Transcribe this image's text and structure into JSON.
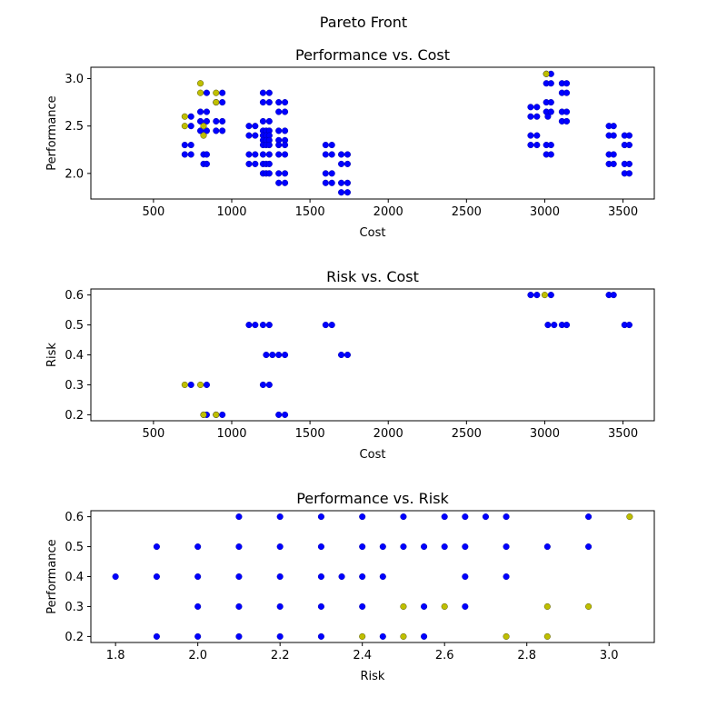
{
  "figure": {
    "suptitle": "Pareto Front"
  },
  "colors": {
    "dominated": "#0000ff",
    "pareto": "#bfbf00",
    "axis": "#000000"
  },
  "chart_data": [
    {
      "type": "scatter",
      "title": "Performance vs. Cost",
      "xlabel": "Cost",
      "ylabel": "Performance",
      "xlim": [
        100,
        3700
      ],
      "ylim": [
        1.73,
        3.12
      ],
      "xticks": [
        500,
        1000,
        1500,
        2000,
        2500,
        3000,
        3500
      ],
      "yticks": [
        2.0,
        2.5,
        3.0
      ],
      "ytick_labels": [
        "2.0",
        "2.5",
        "3.0"
      ],
      "grid": false,
      "series": [
        {
          "role": "dominated",
          "points": [
            [
              700,
              2.2
            ],
            [
              740,
              2.2
            ],
            [
              700,
              2.3
            ],
            [
              740,
              2.3
            ],
            [
              740,
              2.5
            ],
            [
              740,
              2.6
            ],
            [
              800,
              2.45
            ],
            [
              840,
              2.45
            ],
            [
              800,
              2.55
            ],
            [
              840,
              2.55
            ],
            [
              800,
              2.65
            ],
            [
              840,
              2.65
            ],
            [
              840,
              2.85
            ],
            [
              820,
              2.2
            ],
            [
              840,
              2.2
            ],
            [
              820,
              2.1
            ],
            [
              840,
              2.1
            ],
            [
              900,
              2.45
            ],
            [
              940,
              2.45
            ],
            [
              900,
              2.55
            ],
            [
              940,
              2.55
            ],
            [
              900,
              2.75
            ],
            [
              940,
              2.75
            ],
            [
              940,
              2.85
            ],
            [
              1110,
              2.5
            ],
            [
              1150,
              2.5
            ],
            [
              1110,
              2.4
            ],
            [
              1150,
              2.4
            ],
            [
              1110,
              2.2
            ],
            [
              1150,
              2.2
            ],
            [
              1110,
              2.1
            ],
            [
              1150,
              2.1
            ],
            [
              1200,
              2.85
            ],
            [
              1240,
              2.85
            ],
            [
              1200,
              2.75
            ],
            [
              1240,
              2.75
            ],
            [
              1200,
              2.55
            ],
            [
              1240,
              2.55
            ],
            [
              1200,
              2.45
            ],
            [
              1220,
              2.45
            ],
            [
              1240,
              2.45
            ],
            [
              1200,
              2.4
            ],
            [
              1220,
              2.4
            ],
            [
              1240,
              2.4
            ],
            [
              1200,
              2.35
            ],
            [
              1220,
              2.35
            ],
            [
              1240,
              2.35
            ],
            [
              1200,
              2.3
            ],
            [
              1220,
              2.3
            ],
            [
              1240,
              2.3
            ],
            [
              1200,
              2.2
            ],
            [
              1240,
              2.2
            ],
            [
              1200,
              2.1
            ],
            [
              1220,
              2.1
            ],
            [
              1240,
              2.1
            ],
            [
              1200,
              2.0
            ],
            [
              1220,
              2.0
            ],
            [
              1240,
              2.0
            ],
            [
              1300,
              2.75
            ],
            [
              1340,
              2.75
            ],
            [
              1300,
              2.65
            ],
            [
              1340,
              2.65
            ],
            [
              1300,
              2.45
            ],
            [
              1340,
              2.45
            ],
            [
              1300,
              2.35
            ],
            [
              1340,
              2.35
            ],
            [
              1300,
              2.3
            ],
            [
              1340,
              2.3
            ],
            [
              1300,
              2.2
            ],
            [
              1340,
              2.2
            ],
            [
              1300,
              2.0
            ],
            [
              1340,
              2.0
            ],
            [
              1300,
              1.9
            ],
            [
              1340,
              1.9
            ],
            [
              1600,
              2.3
            ],
            [
              1640,
              2.3
            ],
            [
              1600,
              2.2
            ],
            [
              1640,
              2.2
            ],
            [
              1600,
              2.0
            ],
            [
              1640,
              2.0
            ],
            [
              1600,
              1.9
            ],
            [
              1640,
              1.9
            ],
            [
              1700,
              2.2
            ],
            [
              1740,
              2.2
            ],
            [
              1700,
              2.1
            ],
            [
              1740,
              2.1
            ],
            [
              1700,
              1.9
            ],
            [
              1740,
              1.9
            ],
            [
              1700,
              1.8
            ],
            [
              1740,
              1.8
            ],
            [
              2910,
              2.7
            ],
            [
              2950,
              2.7
            ],
            [
              2910,
              2.6
            ],
            [
              2950,
              2.6
            ],
            [
              2910,
              2.4
            ],
            [
              2950,
              2.4
            ],
            [
              2910,
              2.3
            ],
            [
              2950,
              2.3
            ],
            [
              3010,
              3.05
            ],
            [
              3040,
              3.05
            ],
            [
              3010,
              2.95
            ],
            [
              3040,
              2.95
            ],
            [
              3010,
              2.75
            ],
            [
              3040,
              2.75
            ],
            [
              3010,
              2.65
            ],
            [
              3040,
              2.65
            ],
            [
              3010,
              2.3
            ],
            [
              3040,
              2.3
            ],
            [
              3010,
              2.2
            ],
            [
              3040,
              2.2
            ],
            [
              3020,
              2.6
            ],
            [
              3110,
              2.95
            ],
            [
              3140,
              2.95
            ],
            [
              3110,
              2.85
            ],
            [
              3140,
              2.85
            ],
            [
              3110,
              2.65
            ],
            [
              3140,
              2.65
            ],
            [
              3110,
              2.55
            ],
            [
              3140,
              2.55
            ],
            [
              3410,
              2.5
            ],
            [
              3440,
              2.5
            ],
            [
              3410,
              2.4
            ],
            [
              3440,
              2.4
            ],
            [
              3410,
              2.2
            ],
            [
              3440,
              2.2
            ],
            [
              3410,
              2.1
            ],
            [
              3440,
              2.1
            ],
            [
              3510,
              2.4
            ],
            [
              3540,
              2.4
            ],
            [
              3510,
              2.3
            ],
            [
              3540,
              2.3
            ],
            [
              3510,
              2.1
            ],
            [
              3540,
              2.1
            ],
            [
              3510,
              2.0
            ],
            [
              3540,
              2.0
            ]
          ]
        },
        {
          "role": "pareto",
          "points": [
            [
              700,
              2.6
            ],
            [
              700,
              2.5
            ],
            [
              800,
              2.95
            ],
            [
              800,
              2.85
            ],
            [
              820,
              2.5
            ],
            [
              820,
              2.4
            ],
            [
              900,
              2.85
            ],
            [
              900,
              2.75
            ],
            [
              3010,
              3.05
            ]
          ]
        }
      ]
    },
    {
      "type": "scatter",
      "title": "Risk vs. Cost",
      "xlabel": "Cost",
      "ylabel": "Risk",
      "xlim": [
        100,
        3700
      ],
      "ylim": [
        0.18,
        0.62
      ],
      "xticks": [
        500,
        1000,
        1500,
        2000,
        2500,
        3000,
        3500
      ],
      "yticks": [
        0.2,
        0.3,
        0.4,
        0.5,
        0.6
      ],
      "ytick_labels": [
        "0.2",
        "0.3",
        "0.4",
        "0.5",
        "0.6"
      ],
      "grid": false,
      "series": [
        {
          "role": "dominated",
          "points": [
            [
              740,
              0.3
            ],
            [
              840,
              0.3
            ],
            [
              820,
              0.2
            ],
            [
              840,
              0.2
            ],
            [
              900,
              0.2
            ],
            [
              940,
              0.2
            ],
            [
              1110,
              0.5
            ],
            [
              1150,
              0.5
            ],
            [
              1200,
              0.5
            ],
            [
              1240,
              0.5
            ],
            [
              1200,
              0.3
            ],
            [
              1240,
              0.3
            ],
            [
              1220,
              0.4
            ],
            [
              1260,
              0.4
            ],
            [
              1300,
              0.4
            ],
            [
              1340,
              0.4
            ],
            [
              1300,
              0.2
            ],
            [
              1340,
              0.2
            ],
            [
              1600,
              0.5
            ],
            [
              1640,
              0.5
            ],
            [
              1700,
              0.4
            ],
            [
              1740,
              0.4
            ],
            [
              2910,
              0.6
            ],
            [
              2950,
              0.6
            ],
            [
              3040,
              0.6
            ],
            [
              3020,
              0.5
            ],
            [
              3060,
              0.5
            ],
            [
              3110,
              0.5
            ],
            [
              3140,
              0.5
            ],
            [
              3410,
              0.6
            ],
            [
              3440,
              0.6
            ],
            [
              3510,
              0.5
            ],
            [
              3540,
              0.5
            ]
          ]
        },
        {
          "role": "pareto",
          "points": [
            [
              700,
              0.3
            ],
            [
              800,
              0.3
            ],
            [
              820,
              0.2
            ],
            [
              900,
              0.2
            ],
            [
              3000,
              0.6
            ]
          ]
        }
      ]
    },
    {
      "type": "scatter",
      "title": "Performance vs. Risk",
      "xlabel": "Risk",
      "ylabel": "Performance",
      "xlim": [
        1.74,
        3.11
      ],
      "ylim": [
        0.18,
        0.62
      ],
      "xticks": [
        1.8,
        2.0,
        2.2,
        2.4,
        2.6,
        2.8,
        3.0
      ],
      "xtick_labels": [
        "1.8",
        "2.0",
        "2.2",
        "2.4",
        "2.6",
        "2.8",
        "3.0"
      ],
      "yticks": [
        0.2,
        0.3,
        0.4,
        0.5,
        0.6
      ],
      "ytick_labels": [
        "0.2",
        "0.3",
        "0.4",
        "0.5",
        "0.6"
      ],
      "grid": false,
      "series": [
        {
          "role": "dominated",
          "points": [
            [
              1.8,
              0.4
            ],
            [
              1.9,
              0.5
            ],
            [
              1.9,
              0.4
            ],
            [
              1.9,
              0.2
            ],
            [
              2.0,
              0.5
            ],
            [
              2.0,
              0.4
            ],
            [
              2.0,
              0.3
            ],
            [
              2.0,
              0.2
            ],
            [
              2.1,
              0.6
            ],
            [
              2.1,
              0.5
            ],
            [
              2.1,
              0.4
            ],
            [
              2.1,
              0.3
            ],
            [
              2.1,
              0.2
            ],
            [
              2.2,
              0.6
            ],
            [
              2.2,
              0.5
            ],
            [
              2.2,
              0.4
            ],
            [
              2.2,
              0.3
            ],
            [
              2.2,
              0.2
            ],
            [
              2.3,
              0.6
            ],
            [
              2.3,
              0.5
            ],
            [
              2.3,
              0.4
            ],
            [
              2.3,
              0.3
            ],
            [
              2.3,
              0.2
            ],
            [
              2.35,
              0.4
            ],
            [
              2.4,
              0.6
            ],
            [
              2.4,
              0.5
            ],
            [
              2.4,
              0.4
            ],
            [
              2.4,
              0.3
            ],
            [
              2.45,
              0.5
            ],
            [
              2.45,
              0.4
            ],
            [
              2.45,
              0.2
            ],
            [
              2.5,
              0.6
            ],
            [
              2.5,
              0.5
            ],
            [
              2.55,
              0.5
            ],
            [
              2.55,
              0.3
            ],
            [
              2.55,
              0.2
            ],
            [
              2.6,
              0.6
            ],
            [
              2.6,
              0.5
            ],
            [
              2.65,
              0.6
            ],
            [
              2.65,
              0.5
            ],
            [
              2.65,
              0.4
            ],
            [
              2.65,
              0.3
            ],
            [
              2.7,
              0.6
            ],
            [
              2.75,
              0.6
            ],
            [
              2.75,
              0.5
            ],
            [
              2.75,
              0.4
            ],
            [
              2.85,
              0.5
            ],
            [
              2.95,
              0.6
            ],
            [
              2.95,
              0.5
            ]
          ]
        },
        {
          "role": "pareto",
          "points": [
            [
              2.4,
              0.2
            ],
            [
              2.5,
              0.3
            ],
            [
              2.5,
              0.2
            ],
            [
              2.6,
              0.3
            ],
            [
              2.75,
              0.2
            ],
            [
              2.85,
              0.3
            ],
            [
              2.85,
              0.2
            ],
            [
              2.95,
              0.3
            ],
            [
              3.05,
              0.6
            ]
          ]
        }
      ]
    }
  ]
}
